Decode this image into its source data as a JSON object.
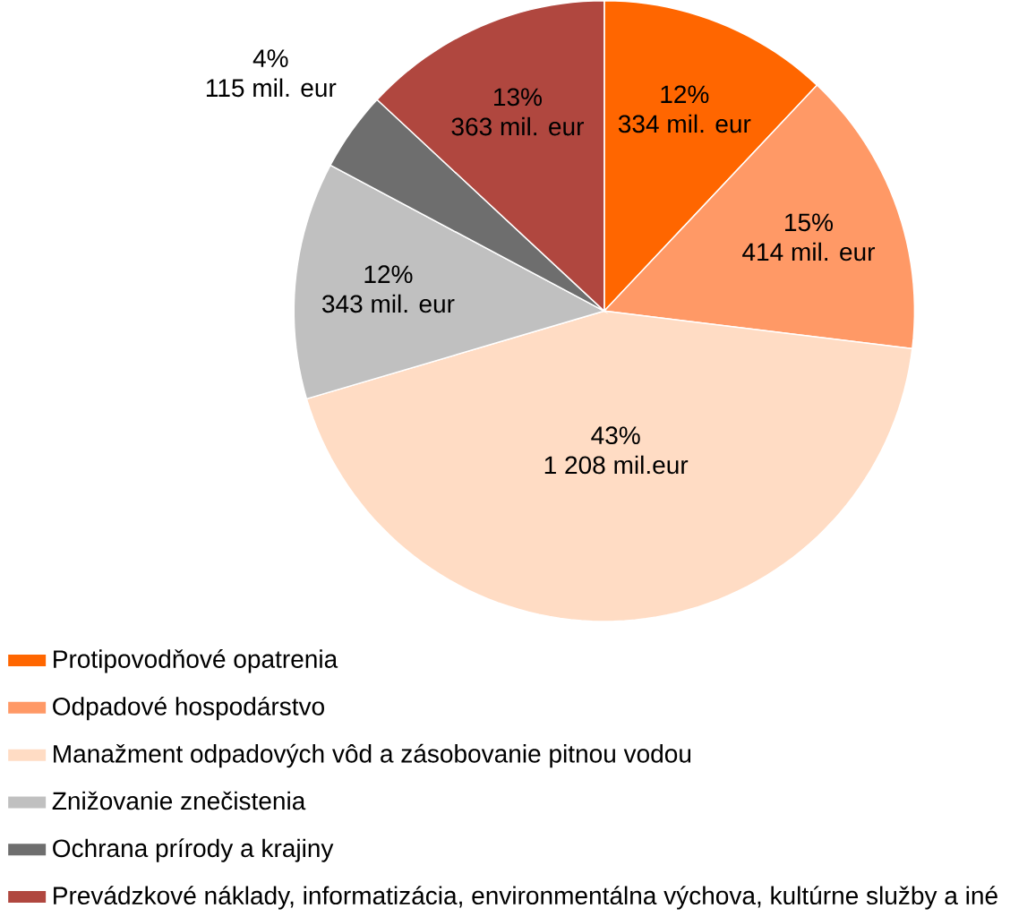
{
  "chart_data": {
    "type": "pie",
    "categories": [
      "Protipovodňové opatrenia",
      "Odpadové hospodárstvo",
      "Manažment odpadových vôd a zásobovanie pitnou vodou",
      "Znižovanie znečistenia",
      "Ochrana prírody a krajiny",
      "Prevádzkové náklady, informatizácia, environmentálna výchova, kultúrne služby a iné"
    ],
    "values": [
      334,
      414,
      1208,
      343,
      115,
      363
    ],
    "colors": [
      "#ff6600",
      "#ff9966",
      "#ffdcc4",
      "#c0c0c0",
      "#6e6e6e",
      "#b0473f"
    ],
    "value_labels": [
      "334 mil. eur",
      "414 mil. eur",
      "1 208 mil.eur",
      "343 mil. eur",
      "115 mil. eur",
      "363 mil. eur"
    ],
    "annotations": [
      {
        "text": "12%",
        "x": "Protipovodňové opatrenia"
      },
      {
        "text": "15%",
        "x": "Odpadové hospodárstvo"
      },
      {
        "text": "43%",
        "x": "Manažment odpadových vôd a zásobovanie pitnou vodou"
      },
      {
        "text": "12%",
        "x": "Znižovanie znečistenia"
      },
      {
        "text": "4%",
        "x": "Ochrana prírody a krajiny"
      },
      {
        "text": "13%",
        "x": "Prevádzkové náklady, informatizácia, environmentálna výchova, kultúrne služby a iné"
      }
    ],
    "legend": "bottom"
  }
}
